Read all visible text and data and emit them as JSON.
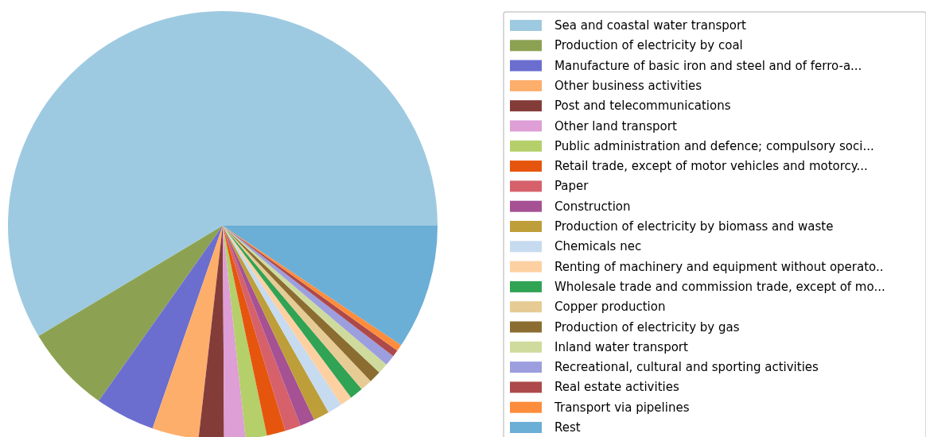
{
  "chart_data": {
    "type": "pie",
    "legend": "right",
    "categories": [
      "Sea and coastal water transport",
      "Production of electricity by coal",
      "Manufacture of basic iron and steel and of ferro-a...",
      "Other business activities",
      "Post and telecommunications",
      "Other land transport",
      "Public administration and defence; compulsory soci...",
      "Retail trade, except of motor vehicles and motorcy...",
      "Paper",
      "Construction",
      "Production of electricity by biomass and waste",
      "Chemicals nec",
      "Renting of machinery and equipment without operato..",
      "Wholesale trade and commission trade, except of mo...",
      "Copper production",
      "Production of electricity by gas",
      "Inland water transport",
      "Recreational, cultural and sporting activities",
      "Real estate activities",
      "Transport via pipelines",
      "Rest"
    ],
    "values": [
      58.6,
      6.6,
      4.5,
      3.5,
      1.9,
      1.6,
      1.6,
      1.4,
      1.2,
      1.1,
      1.2,
      1.1,
      0.9,
      1.0,
      0.9,
      0.9,
      0.8,
      0.8,
      0.5,
      0.5,
      9.4
    ],
    "colors": [
      "#9ecae1",
      "#8ca252",
      "#6b6ecf",
      "#fdae6b",
      "#843c39",
      "#de9ed6",
      "#b5cf6b",
      "#e6550d",
      "#d6616b",
      "#a55194",
      "#bd9e39",
      "#c6dbef",
      "#fdd0a2",
      "#31a354",
      "#e7cb94",
      "#8c6d31",
      "#cedb9c",
      "#9c9ede",
      "#ad494a",
      "#fd8d3c",
      "#6baed6"
    ]
  }
}
